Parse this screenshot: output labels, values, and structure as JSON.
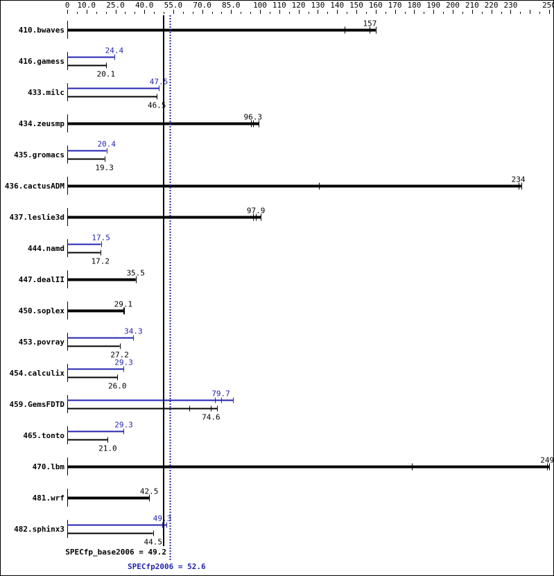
{
  "chart_data": {
    "type": "bar",
    "orientation": "horizontal",
    "xlim": [
      0,
      250
    ],
    "tick_labels": [
      "0",
      "10.0",
      "25.0",
      "40.0",
      "55.0",
      "70.0",
      "85.0",
      "100",
      "110",
      "120",
      "130",
      "140",
      "150",
      "160",
      "170",
      "180",
      "190",
      "200",
      "210",
      "220",
      "230",
      "250"
    ],
    "tick_values": [
      0,
      10,
      25,
      40,
      55,
      70,
      85,
      100,
      110,
      120,
      130,
      140,
      150,
      160,
      170,
      180,
      190,
      200,
      210,
      220,
      230,
      250
    ],
    "colors": {
      "base": "#000000",
      "peak": "#2323b0"
    },
    "categories": [
      "410.bwaves",
      "416.gamess",
      "433.milc",
      "434.zeusmp",
      "435.gromacs",
      "436.cactusADM",
      "437.leslie3d",
      "444.namd",
      "447.dealII",
      "450.soplex",
      "453.povray",
      "454.calculix",
      "459.GemsFDTD",
      "465.tonto",
      "470.lbm",
      "481.wrf",
      "482.sphinx3"
    ],
    "series": [
      {
        "key": "peak",
        "values": [
          null,
          24.4,
          47.5,
          null,
          20.4,
          null,
          null,
          17.5,
          null,
          null,
          34.3,
          29.3,
          79.7,
          29.3,
          null,
          null,
          49.3
        ],
        "labels": [
          null,
          "24.4",
          "47.5",
          null,
          "20.4",
          null,
          null,
          "17.5",
          null,
          null,
          "34.3",
          "29.3",
          "79.7",
          "29.3",
          null,
          null,
          "49.3"
        ],
        "runs": [
          null,
          [
            24.4
          ],
          [
            47.5
          ],
          null,
          [
            20.4
          ],
          null,
          null,
          [
            17.5
          ],
          null,
          null,
          [
            34.3
          ],
          [
            29.3
          ],
          [
            76.6,
            79.7,
            86.0
          ],
          [
            29.3
          ],
          null,
          null,
          [
            49.3,
            51.4
          ]
        ]
      },
      {
        "key": "base",
        "values": [
          157,
          20.1,
          46.5,
          96.3,
          19.3,
          234,
          97.9,
          17.2,
          35.5,
          29.1,
          27.2,
          26.0,
          74.6,
          21.0,
          249,
          42.5,
          44.5
        ],
        "labels": [
          "157",
          "20.1",
          "46.5",
          "96.3",
          "19.3",
          "234",
          "97.9",
          "17.2",
          "35.5",
          "29.1",
          "27.2",
          "26.0",
          "74.6",
          "21.0",
          "249",
          "42.5",
          "44.5"
        ],
        "runs": [
          [
            144,
            157,
            160
          ],
          [
            20.1,
            20.3
          ],
          [
            46.5
          ],
          [
            95.3,
            96.3,
            99.3
          ],
          [
            19.3
          ],
          [
            130.5,
            234,
            235.5
          ],
          [
            96.4,
            97.9,
            100.4
          ],
          [
            17.2
          ],
          [
            35.5
          ],
          [
            29.1,
            29.5
          ],
          [
            27.2
          ],
          [
            26.0
          ],
          [
            63.3,
            74.6,
            77.7
          ],
          [
            21.0
          ],
          [
            178.8,
            249,
            250
          ],
          [
            42.5
          ],
          [
            44.5
          ]
        ]
      }
    ],
    "reference_lines": [
      {
        "key": "base",
        "label": "SPECfp_base2006 = 49.2",
        "value": 49.2,
        "style": "solid"
      },
      {
        "key": "peak",
        "label": "SPECfp2006 = 52.6",
        "value": 52.6,
        "style": "dotted"
      }
    ]
  }
}
